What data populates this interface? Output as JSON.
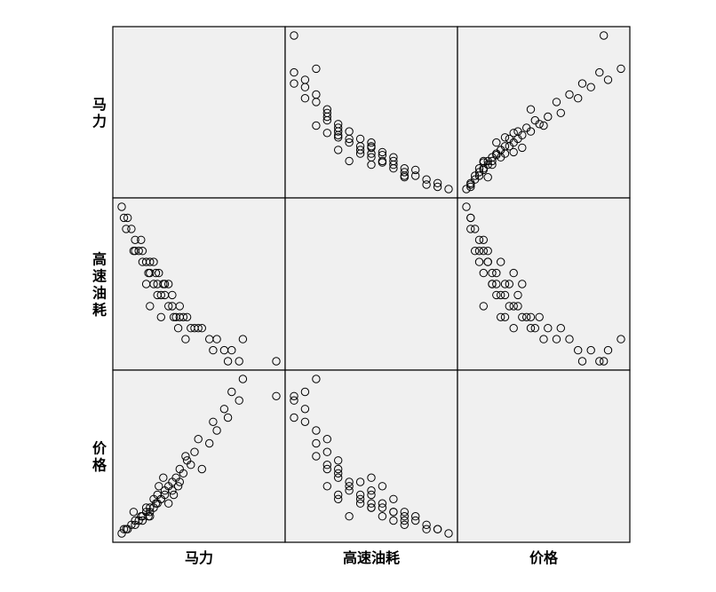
{
  "chart_data": {
    "type": "scatter",
    "variables": [
      "马力",
      "高速油耗",
      "价格"
    ],
    "row_labels": [
      "马力",
      "高速油耗",
      "价格"
    ],
    "col_labels": [
      "马力",
      "高速油耗",
      "价格"
    ],
    "diagonal": "empty",
    "marker": "open-circle",
    "background_color": "#f0f0f0",
    "observations": [
      {
        "hp": 92,
        "mpg": 34,
        "price": 9
      },
      {
        "hp": 95,
        "mpg": 33,
        "price": 10
      },
      {
        "hp": 100,
        "mpg": 33,
        "price": 10
      },
      {
        "hp": 105,
        "mpg": 32,
        "price": 11
      },
      {
        "hp": 110,
        "mpg": 31,
        "price": 12
      },
      {
        "hp": 110,
        "mpg": 30,
        "price": 11
      },
      {
        "hp": 115,
        "mpg": 30,
        "price": 12
      },
      {
        "hp": 120,
        "mpg": 30,
        "price": 13
      },
      {
        "hp": 120,
        "mpg": 29,
        "price": 12
      },
      {
        "hp": 125,
        "mpg": 29,
        "price": 14
      },
      {
        "hp": 128,
        "mpg": 28,
        "price": 13
      },
      {
        "hp": 130,
        "mpg": 28,
        "price": 15
      },
      {
        "hp": 130,
        "mpg": 29,
        "price": 14
      },
      {
        "hp": 135,
        "mpg": 27,
        "price": 15
      },
      {
        "hp": 138,
        "mpg": 28,
        "price": 16
      },
      {
        "hp": 140,
        "mpg": 26,
        "price": 16
      },
      {
        "hp": 140,
        "mpg": 27,
        "price": 18
      },
      {
        "hp": 145,
        "mpg": 26,
        "price": 17
      },
      {
        "hp": 150,
        "mpg": 26,
        "price": 18
      },
      {
        "hp": 150,
        "mpg": 27,
        "price": 19
      },
      {
        "hp": 155,
        "mpg": 25,
        "price": 20
      },
      {
        "hp": 160,
        "mpg": 25,
        "price": 19
      },
      {
        "hp": 160,
        "mpg": 26,
        "price": 21
      },
      {
        "hp": 165,
        "mpg": 24,
        "price": 22
      },
      {
        "hp": 170,
        "mpg": 25,
        "price": 21
      },
      {
        "hp": 170,
        "mpg": 24,
        "price": 24
      },
      {
        "hp": 175,
        "mpg": 24,
        "price": 23
      },
      {
        "hp": 180,
        "mpg": 24,
        "price": 26
      },
      {
        "hp": 185,
        "mpg": 23,
        "price": 25
      },
      {
        "hp": 190,
        "mpg": 23,
        "price": 28
      },
      {
        "hp": 200,
        "mpg": 23,
        "price": 24
      },
      {
        "hp": 210,
        "mpg": 22,
        "price": 30
      },
      {
        "hp": 220,
        "mpg": 22,
        "price": 33
      },
      {
        "hp": 230,
        "mpg": 21,
        "price": 38
      },
      {
        "hp": 240,
        "mpg": 21,
        "price": 42
      },
      {
        "hp": 250,
        "mpg": 20,
        "price": 40
      },
      {
        "hp": 255,
        "mpg": 22,
        "price": 45
      },
      {
        "hp": 300,
        "mpg": 20,
        "price": 41
      },
      {
        "hp": 98,
        "mpg": 32,
        "price": 10
      },
      {
        "hp": 118,
        "mpg": 31,
        "price": 13
      },
      {
        "hp": 135,
        "mpg": 29,
        "price": 17
      },
      {
        "hp": 142,
        "mpg": 28,
        "price": 20
      },
      {
        "hp": 148,
        "mpg": 27,
        "price": 22
      },
      {
        "hp": 155,
        "mpg": 27,
        "price": 16
      },
      {
        "hp": 162,
        "mpg": 24,
        "price": 18
      },
      {
        "hp": 168,
        "mpg": 23,
        "price": 20
      },
      {
        "hp": 178,
        "mpg": 22,
        "price": 27
      },
      {
        "hp": 195,
        "mpg": 23,
        "price": 31
      },
      {
        "hp": 215,
        "mpg": 21,
        "price": 35
      },
      {
        "hp": 235,
        "mpg": 20,
        "price": 36
      },
      {
        "hp": 108,
        "mpg": 30,
        "price": 14
      },
      {
        "hp": 125,
        "mpg": 27,
        "price": 15
      },
      {
        "hp": 130,
        "mpg": 25,
        "price": 13
      },
      {
        "hp": 145,
        "mpg": 24,
        "price": 17
      }
    ]
  }
}
